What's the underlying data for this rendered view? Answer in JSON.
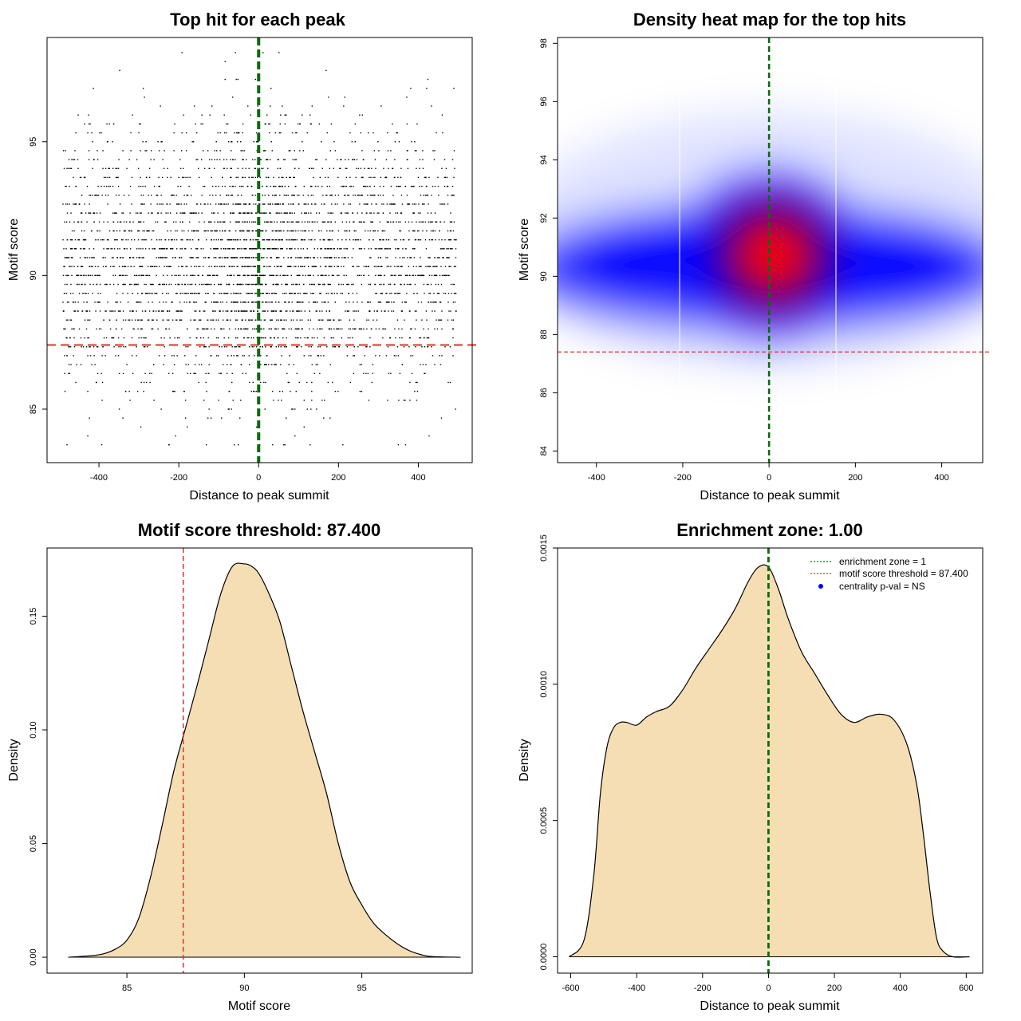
{
  "colors": {
    "threshold": "#e0312f",
    "zone": "#0a6b0a",
    "fill": "#f5deb3",
    "heat_low": "#0000ff",
    "heat_high": "#ff0000"
  },
  "chart_data": [
    {
      "id": "scatter",
      "type": "scatter",
      "title": "Top hit for each peak",
      "xlabel": "Distance to peak summit",
      "ylabel": "Motif score",
      "xlim": [
        -530,
        535
      ],
      "ylim": [
        83,
        98.9
      ],
      "x_ticks": [
        -400,
        -200,
        0,
        200,
        400
      ],
      "y_ticks": [
        85,
        90,
        95
      ],
      "x_tick_labels": [
        "-400",
        "-200",
        "0",
        "200",
        "400"
      ],
      "y_tick_labels": [
        "85",
        "90",
        "95"
      ],
      "points_summary": {
        "count": 4000,
        "x_range": [
          -490,
          495
        ],
        "y_mean": 90.6,
        "y_sd": 2.4,
        "x_center_peak": 0
      },
      "threshold": 87.4,
      "zone_x": 0
    },
    {
      "id": "heatmap",
      "type": "heatmap",
      "title": "Density heat map for the top hits",
      "xlabel": "Distance to peak summit",
      "ylabel": "Motif score",
      "xlim": [
        -490,
        495
      ],
      "ylim": [
        83.6,
        98.2
      ],
      "x_ticks": [
        -400,
        -200,
        0,
        200,
        400
      ],
      "y_ticks": [
        84,
        86,
        88,
        90,
        92,
        94,
        96,
        98
      ],
      "x_tick_labels": [
        "-400",
        "-200",
        "0",
        "200",
        "400"
      ],
      "y_tick_labels": [
        "84",
        "86",
        "88",
        "90",
        "92",
        "94",
        "96",
        "98"
      ],
      "hot_spot": {
        "x": 20,
        "y": 90.9
      },
      "threshold": 87.4,
      "zone_x": 0
    },
    {
      "id": "score_density",
      "type": "area",
      "title": "Motif score threshold: 87.400",
      "xlabel": "Motif score",
      "ylabel": "Density",
      "xlim": [
        81.6,
        99.7
      ],
      "ylim": [
        -0.007,
        0.18
      ],
      "x_ticks": [
        85,
        90,
        95
      ],
      "y_ticks": [
        0,
        0.05,
        0.1,
        0.15
      ],
      "x_tick_labels": [
        "85",
        "90",
        "95"
      ],
      "y_tick_labels": [
        "0.00",
        "0.05",
        "0.10",
        "0.15"
      ],
      "x": [
        82.5,
        83.5,
        84.0,
        84.5,
        85.0,
        85.5,
        86.0,
        86.5,
        87.0,
        87.5,
        88.0,
        88.5,
        89.0,
        89.5,
        90.0,
        90.3,
        90.6,
        91.0,
        91.5,
        92.0,
        92.5,
        93.0,
        93.5,
        94.0,
        94.5,
        95.0,
        95.5,
        96.0,
        96.5,
        97.0,
        97.5,
        98.0,
        99.2
      ],
      "y": [
        0.0,
        0.0007,
        0.0015,
        0.0035,
        0.0075,
        0.017,
        0.035,
        0.058,
        0.082,
        0.101,
        0.12,
        0.14,
        0.16,
        0.172,
        0.173,
        0.172,
        0.169,
        0.161,
        0.148,
        0.128,
        0.108,
        0.09,
        0.072,
        0.05,
        0.033,
        0.023,
        0.015,
        0.01,
        0.006,
        0.003,
        0.0012,
        0.0003,
        0.0
      ],
      "threshold": 87.4
    },
    {
      "id": "distance_density",
      "type": "area",
      "title": "Enrichment zone: 1.00",
      "xlabel": "Distance to peak summit",
      "ylabel": "Density",
      "xlim": [
        -640,
        650
      ],
      "ylim": [
        -6e-05,
        0.0015
      ],
      "x_ticks": [
        -600,
        -400,
        -200,
        0,
        200,
        400,
        600
      ],
      "y_ticks": [
        0,
        0.0005,
        0.001,
        0.0015
      ],
      "x_tick_labels": [
        "-600",
        "-400",
        "-200",
        "0",
        "200",
        "400",
        "600"
      ],
      "y_tick_labels": [
        "0.0000",
        "0.0005",
        "0.0010",
        "0.0015"
      ],
      "x": [
        -605,
        -560,
        -530,
        -510,
        -490,
        -470,
        -450,
        -430,
        -400,
        -370,
        -340,
        -300,
        -260,
        -220,
        -180,
        -140,
        -100,
        -60,
        -30,
        0,
        30,
        60,
        100,
        140,
        180,
        220,
        260,
        300,
        340,
        380,
        420,
        450,
        470,
        490,
        510,
        530,
        560,
        610
      ],
      "y": [
        0.0,
        6e-05,
        0.0003,
        0.0006,
        0.00077,
        0.00084,
        0.00086,
        0.00086,
        0.00085,
        0.00088,
        0.0009,
        0.00092,
        0.00098,
        0.00106,
        0.00113,
        0.0012,
        0.00128,
        0.00138,
        0.00143,
        0.00143,
        0.00135,
        0.00124,
        0.00112,
        0.00104,
        0.00096,
        0.00089,
        0.00086,
        0.00088,
        0.00089,
        0.00087,
        0.00078,
        0.00063,
        0.00045,
        0.00024,
        7e-05,
        2e-05,
        0.0,
        0.0
      ],
      "zone_x": 0,
      "legend": [
        {
          "label": "enrichment zone = 1",
          "style": "dotted-line",
          "color": "#0a6b0a"
        },
        {
          "label": "motif score threshold = 87.400",
          "style": "dotted-line",
          "color": "#e0312f"
        },
        {
          "label": "centrality p-val = NS",
          "style": "dot",
          "color": "#0000ff"
        }
      ],
      "legend_position": "top-right"
    }
  ]
}
